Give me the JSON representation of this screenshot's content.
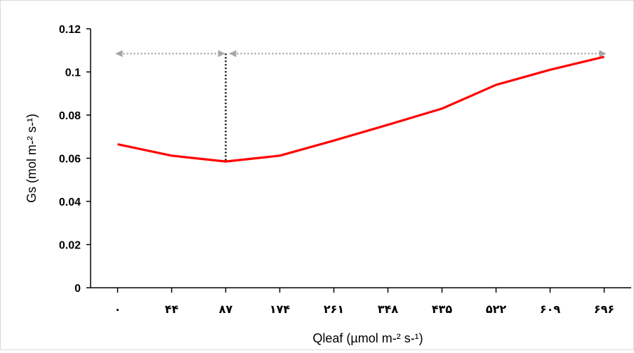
{
  "chart_data": {
    "type": "line",
    "xlabel": "Qleaf (µmol m-² s-¹)",
    "ylabel": "Gs (mol m-² s-¹)",
    "categories": [
      "۰",
      "۴۴",
      "۸۷",
      "۱۷۴",
      "۲۶۱",
      "۳۴۸",
      "۴۳۵",
      "۵۲۲",
      "۶۰۹",
      "۶۹۶"
    ],
    "series": [
      {
        "values": [
          0.0665,
          0.0612,
          0.0585,
          0.0612,
          0.0682,
          0.0755,
          0.083,
          0.094,
          0.101,
          0.107
        ],
        "color": "#ff0000"
      }
    ],
    "yticks": [
      "0",
      "0.02",
      "0.04",
      "0.06",
      "0.08",
      "0.1",
      "0.12"
    ],
    "ylim": [
      0,
      0.12
    ],
    "grid": false,
    "legend": "none",
    "annotations": {
      "breakpoint_category_index": 2,
      "arrow_level": 0.1085,
      "arrow_color": "#a6a6a6",
      "vline_color": "#000000"
    }
  }
}
